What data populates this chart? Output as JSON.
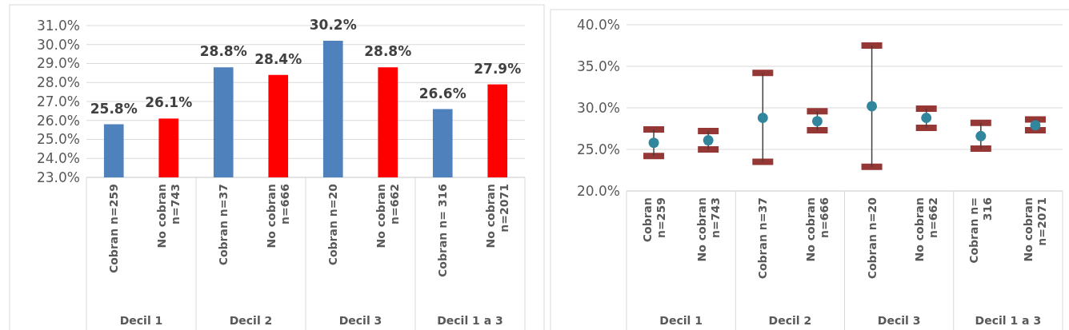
{
  "chart_data": [
    {
      "type": "bar",
      "categories": [
        "Cobran n=259",
        "No cobran n=743",
        "Cobran n=37",
        "No cobran n=666",
        "Cobran n=20",
        "No cobran n=662",
        "Cobran n= 316",
        "No cobran n=2071"
      ],
      "values": [
        25.8,
        26.1,
        28.8,
        28.4,
        30.2,
        28.8,
        26.6,
        27.9
      ],
      "colors": [
        "#4f81bd",
        "#ff0000",
        "#4f81bd",
        "#ff0000",
        "#4f81bd",
        "#ff0000",
        "#4f81bd",
        "#ff0000"
      ],
      "value_labels": [
        "25.8%",
        "26.1%",
        "28.8%",
        "28.4%",
        "30.2%",
        "28.8%",
        "26.6%",
        "27.9%"
      ],
      "ylim": [
        23,
        31
      ],
      "yticks": [
        {
          "value": 23,
          "label": "23.0%"
        },
        {
          "value": 24,
          "label": "24.0%"
        },
        {
          "value": 25,
          "label": "25.0%"
        },
        {
          "value": 26,
          "label": "26.0%"
        },
        {
          "value": 27,
          "label": "27.0%"
        },
        {
          "value": 28,
          "label": "28.0%"
        },
        {
          "value": 29,
          "label": "29.0%"
        },
        {
          "value": 30,
          "label": "30.0%"
        },
        {
          "value": 31,
          "label": "31.0%"
        }
      ],
      "grid": "y",
      "annotations": [
        "Decil 1",
        "Decil 2",
        "Decil 3",
        "Decil 1 a 3"
      ]
    },
    {
      "type": "scatter",
      "categories": [
        "Cobran n=259",
        "No cobran n=743",
        "Cobran n=37",
        "No cobran n=666",
        "Cobran n=20",
        "No cobran n=662",
        "Cobran n= 316",
        "No cobran n=2071"
      ],
      "series": [
        {
          "color": "#31859c",
          "values": [
            25.8,
            26.1,
            28.8,
            28.4,
            30.2,
            28.8,
            26.6,
            27.9
          ],
          "errors": [
            [
              24.2,
              27.4
            ],
            [
              25.0,
              27.2
            ],
            [
              23.5,
              34.2
            ],
            [
              27.3,
              29.6
            ],
            [
              22.9,
              37.5
            ],
            [
              27.6,
              29.9
            ],
            [
              25.1,
              28.2
            ],
            [
              27.3,
              28.6
            ]
          ]
        }
      ],
      "marker": "circle",
      "ylim": [
        20,
        40
      ],
      "yticks": [
        {
          "value": 20,
          "label": "20.0%"
        },
        {
          "value": 25,
          "label": "25.0%"
        },
        {
          "value": 30,
          "label": "30.0%"
        },
        {
          "value": 35,
          "label": "35.0%"
        },
        {
          "value": 40,
          "label": "40.0%"
        }
      ],
      "grid": "y",
      "annotations": [
        "Decil 1",
        "Decil 2",
        "Decil 3",
        "Decil 1 a 3"
      ]
    }
  ]
}
